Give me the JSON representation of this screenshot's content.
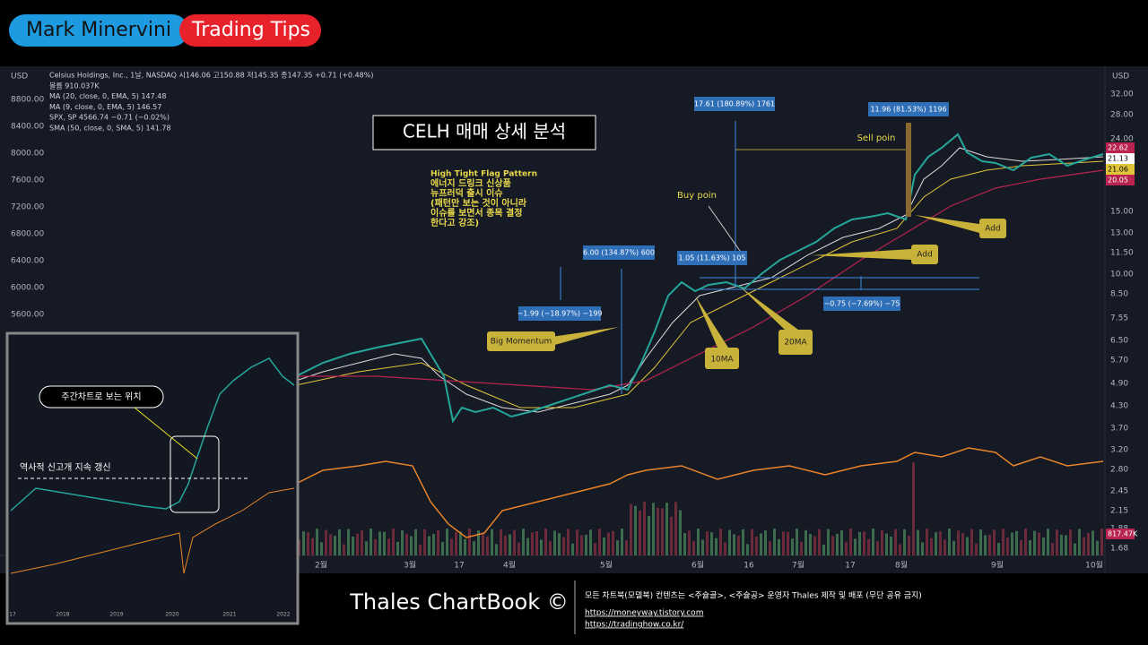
{
  "header": {
    "name": "Mark Minervini",
    "tag": "Trading Tips"
  },
  "chart": {
    "legend": [
      "Celsius Holdings, Inc., 1날, NASDAQ 시146.06 고150.88 저145.35 종147.35 +0.71 (+0.48%)",
      "볼륨 910.037K",
      "MA (20, close, 0, EMA, 5) 147.48",
      "MA (9, close, 0, EMA, 5) 146.57",
      "SPX, SP 4566.74 −0.71 (−0.02%)",
      "SMA (50, close, 0, SMA, 5) 141.78"
    ],
    "currency": "USD",
    "left_axis": [
      "8800.00",
      "8400.00",
      "8000.00",
      "7600.00",
      "7200.00",
      "6800.00",
      "6400.00",
      "6000.00",
      "5600.00"
    ],
    "right_axis": [
      "32.00",
      "28.00",
      "24.00",
      "15.00",
      "13.00",
      "11.50",
      "10.00",
      "8.50",
      "7.55",
      "6.50",
      "5.70",
      "4.90",
      "4.30",
      "3.70",
      "3.20",
      "2.80",
      "2.45",
      "2.15",
      "1.88",
      "1.68"
    ],
    "price_badges": [
      "22.62",
      "21.13",
      "21.06",
      "20.05",
      "817.47K"
    ],
    "time_axis": [
      "2월",
      "3월",
      "17",
      "4월",
      "5월",
      "6월",
      "16",
      "7월",
      "17",
      "8월",
      "9월",
      "10월"
    ],
    "title": "CELH 매매 상세 분석",
    "pattern_note": [
      "High Tight Flag Pattern",
      "에너지 드링크 신상품",
      "뉴프러덕 출시 이슈",
      "(패턴만 보는 것이 아니라",
      "이슈를 보면서 종목 결정",
      "한다고 강조)"
    ],
    "annotations": [
      "Big Momentum",
      "Buy poin",
      "Sell poin",
      "Add",
      "Add",
      "10MA",
      "20MA"
    ],
    "measures": [
      "6.00 (134.87%) 600",
      "−1.99 (−18.97%) −199",
      "1.05 (11.63%) 105",
      "17.61 (180.89%) 1761",
      "11.96 (81.53%) 1196",
      "−0.75 (−7.69%) −75"
    ]
  },
  "inset": {
    "callout": "주간차트로 보는 위치",
    "high_note": "역사적 신고개 지속 갱신",
    "years": [
      "17",
      "2018",
      "2019",
      "2020",
      "2021",
      "2022"
    ]
  },
  "footer": {
    "brand": "Thales ChartBook ©",
    "notice": "모든 차트북(모델북) 컨텐츠는 <주슐골>, <주슐공> 운영자 Thales 제작 및 배포 (무단 공유 금지)",
    "links": [
      "https://moneyway.tistory.com",
      "https://tradinghow.co.kr/"
    ]
  }
}
